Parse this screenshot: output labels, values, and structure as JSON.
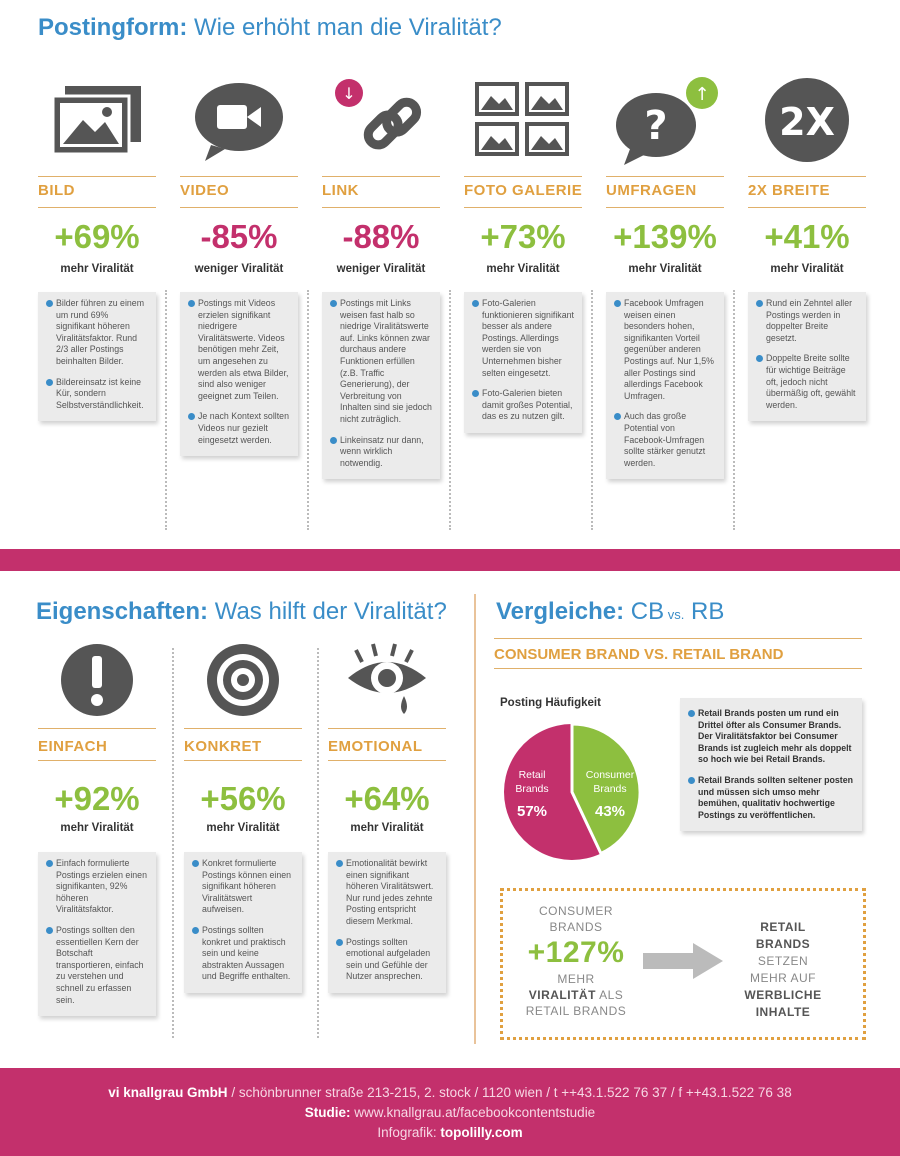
{
  "top": {
    "title_bold": "Postingform:",
    "title_rest": " Wie erhöht man die Viralität?",
    "columns": [
      {
        "cat": "BILD",
        "pct": "+69%",
        "sub": "mehr Viralität",
        "color": "#8dbf3f",
        "icon": "image-icon",
        "notes": [
          "Bilder führen zu einem um rund 69% signifikant höheren Viralitätsfaktor. Rund 2/3 aller Postings beinhalten Bilder.",
          "Bildereinsatz ist keine Kür, sondern Selbstverständlichkeit."
        ]
      },
      {
        "cat": "VIDEO",
        "pct": "-85%",
        "sub": "weniger Viralität",
        "color": "#c3306c",
        "icon": "video-camera-icon",
        "notes": [
          "Postings mit Videos erzielen signifikant niedrigere Viralitätswerte. Videos benötigen mehr Zeit, um angesehen zu werden als etwa Bilder, sind also weniger geeignet zum Teilen.",
          "Je nach Kontext sollten Videos nur gezielt eingesetzt werden."
        ]
      },
      {
        "cat": "LINK",
        "pct": "-88%",
        "sub": "weniger Viralität",
        "color": "#c3306c",
        "icon": "chain-link-icon",
        "notes": [
          "Postings mit Links weisen fast halb so niedrige Viralitätswerte auf. Links können zwar durchaus andere Funktionen erfüllen (z.B. Traffic Generierung), der Verbreitung von Inhalten sind sie jedoch nicht zuträglich.",
          "Linkeinsatz nur dann, wenn wirklich notwendig."
        ]
      },
      {
        "cat": "FOTO GALERIE",
        "pct": "+73%",
        "sub": "mehr Viralität",
        "color": "#8dbf3f",
        "icon": "photo-gallery-icon",
        "notes": [
          "Foto-Galerien funktionieren signifikant besser als andere Postings. Allerdings werden sie von Unternehmen bisher selten eingesetzt.",
          "Foto-Galerien bieten damit großes Potential, das es zu nutzen gilt."
        ]
      },
      {
        "cat": "UMFRAGEN",
        "pct": "+139%",
        "sub": "mehr Viralität",
        "color": "#8dbf3f",
        "icon": "question-bubble-icon",
        "notes": [
          "Facebook Umfragen weisen einen besonders hohen, signifikanten Vorteil gegenüber anderen Postings auf. Nur 1,5% aller Postings sind allerdings Facebook Umfragen.",
          "Auch das große Potential von Facebook-Umfragen sollte stärker genutzt werden."
        ]
      },
      {
        "cat": "2X BREITE",
        "pct": "+41%",
        "sub": "mehr Viralität",
        "color": "#8dbf3f",
        "icon": "double-width-icon",
        "notes": [
          "Rund ein Zehntel aller Postings werden in doppelter Breite gesetzt.",
          "Doppelte Breite sollte für wichtige Beiträge oft, jedoch nicht übermäßig oft, gewählt werden."
        ]
      }
    ]
  },
  "props": {
    "title_bold": "Eigenschaften:",
    "title_rest": " Was hilft der Viralität?",
    "columns": [
      {
        "cat": "EINFACH",
        "pct": "+92%",
        "sub": "mehr Viralität",
        "icon": "exclamation-icon",
        "notes": [
          "Einfach formulierte Postings erzielen einen signifikanten, 92% höheren Viralitätsfaktor.",
          "Postings sollten den essentiellen Kern der Botschaft transportieren, einfach zu verstehen und schnell zu erfassen sein."
        ]
      },
      {
        "cat": "KONKRET",
        "pct": "+56%",
        "sub": "mehr Viralität",
        "icon": "target-icon",
        "notes": [
          "Konkret formulierte Postings können einen signifikant höheren Viralitätswert aufweisen.",
          "Postings sollten konkret und praktisch sein und keine abstrakten Aussagen und Begriffe enthalten."
        ]
      },
      {
        "cat": "EMOTIONAL",
        "pct": "+64%",
        "sub": "mehr Viralität",
        "icon": "crying-eye-icon",
        "notes": [
          "Emotionalität bewirkt einen signifikant höheren Viralitätswert. Nur rund jedes zehnte Posting entspricht diesem Merkmal.",
          "Postings sollten emotional aufgeladen sein und Gefühle der Nutzer ansprechen."
        ]
      }
    ]
  },
  "compare": {
    "title_bold": "Vergleiche:",
    "title_cb": " CB",
    "title_vs": " vs.",
    "title_rb": " RB",
    "subtitle": "CONSUMER BRAND VS. RETAIL BRAND",
    "note1": "Retail Brands posten um rund ein Drittel öfter als Consumer Brands. Der Viralitätsfaktor bei Consumer Brands ist zugleich mehr als doppelt so hoch wie bei Retail Brands.",
    "note2": "Retail Brands sollten seltener posten und müssen sich umso mehr bemühen, qualitativ hochwertige Postings zu veröffentlichen.",
    "left_line1": "CONSUMER",
    "left_line2": "BRANDS",
    "left_big": "+127%",
    "left_line3": "MEHR",
    "left_line4_bold": "VIRALITÄT",
    "left_line4_rest": " ALS",
    "left_line5": "RETAIL BRANDS",
    "right_bold1": "RETAIL",
    "right_bold2": "BRANDS",
    "right_line3": "SETZEN",
    "right_line4": "MEHR AUF",
    "right_bold5": "WERBLICHE",
    "right_bold6": "INHALTE"
  },
  "chart_data": {
    "type": "pie",
    "title": "Posting Häufigkeit",
    "categories": [
      "Retail Brands",
      "Consumer Brands"
    ],
    "values": [
      57,
      43
    ],
    "labels": [
      "57%",
      "43%"
    ],
    "colors": [
      "#c3306c",
      "#8dbf3f"
    ]
  },
  "footer": {
    "company": "vi knallgrau GmbH",
    "address": " / schönbrunner straße 213-215, 2. stock / 1120 wien / t ++43.1.522 76 37 / f ++43.1.522 76 38",
    "studie_label": "Studie:",
    "studie_url": " www.knallgrau.at/facebookcontentstudie",
    "infografik_label": "Infografik:",
    "infografik_name": " topolilly.com"
  }
}
